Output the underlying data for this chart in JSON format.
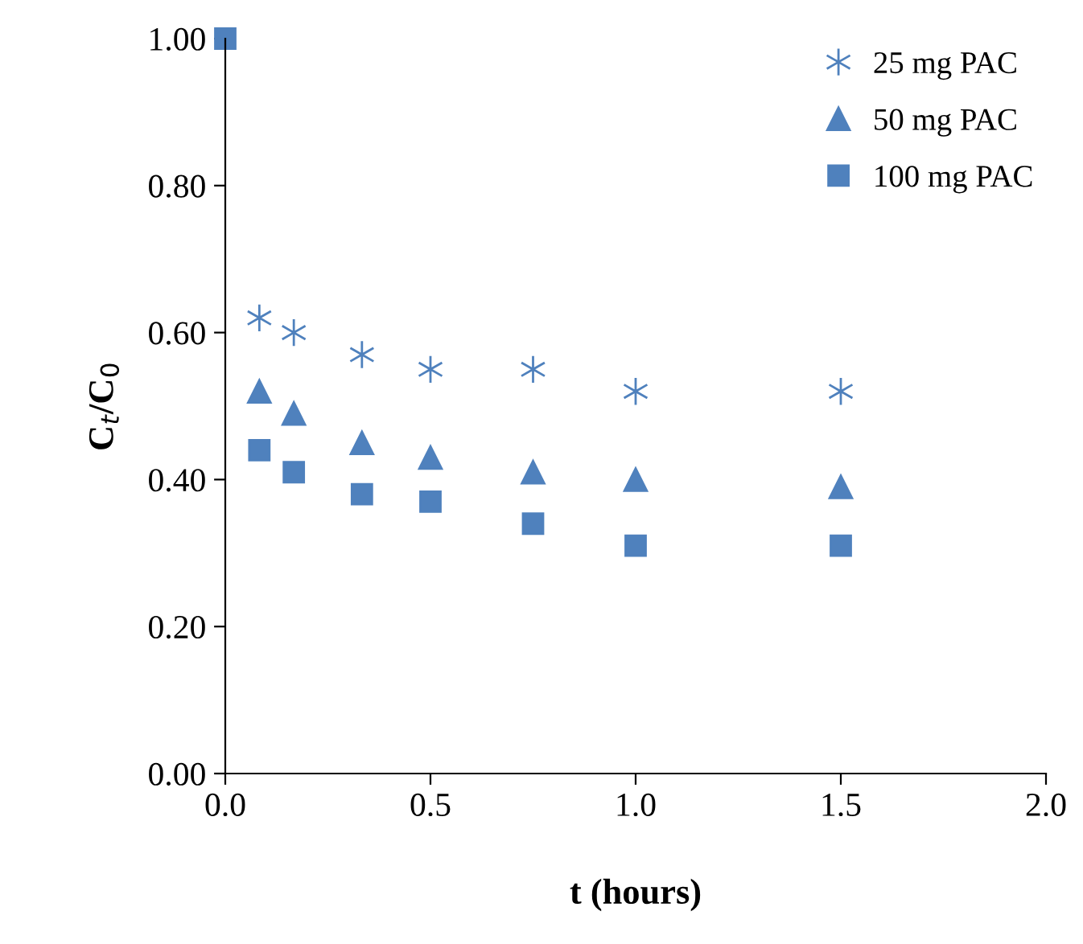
{
  "chart_data": {
    "type": "scatter",
    "xlabel": "t (hours)",
    "ylabel": "C$_{t}$/C$_{0}$",
    "xlim": [
      0,
      2
    ],
    "ylim": [
      0,
      1
    ],
    "xticks": [
      {
        "value": 0,
        "label": "0.0"
      },
      {
        "value": 0.5,
        "label": "0.5"
      },
      {
        "value": 1,
        "label": "1.0"
      },
      {
        "value": 1.5,
        "label": "1.5"
      },
      {
        "value": 2,
        "label": "2.0"
      }
    ],
    "yticks": [
      {
        "value": 0,
        "label": "0.00"
      },
      {
        "value": 0.2,
        "label": "0.20"
      },
      {
        "value": 0.4,
        "label": "0.40"
      },
      {
        "value": 0.6,
        "label": "0.60"
      },
      {
        "value": 0.8,
        "label": "0.80"
      },
      {
        "value": 1,
        "label": "1.00"
      }
    ],
    "grid": false,
    "legend": "top right",
    "x": [
      0,
      0.083,
      0.167,
      0.333,
      0.5,
      0.75,
      1.0,
      1.5
    ],
    "series": [
      {
        "name": "25 mg PAC",
        "color": "#4f81bd",
        "marker": "cross",
        "values": [
          null,
          0.62,
          0.6,
          0.57,
          0.55,
          0.55,
          0.52,
          0.52
        ]
      },
      {
        "name": "50 mg PAC",
        "color": "#4f81bd",
        "marker": "triangle",
        "values": [
          null,
          0.52,
          0.49,
          0.45,
          0.43,
          0.41,
          0.4,
          0.39
        ]
      },
      {
        "name": "100 mg PAC",
        "color": "#4f81bd",
        "marker": "square",
        "values": [
          1.0,
          0.44,
          0.41,
          0.38,
          0.37,
          0.34,
          0.31,
          0.31
        ]
      }
    ]
  }
}
